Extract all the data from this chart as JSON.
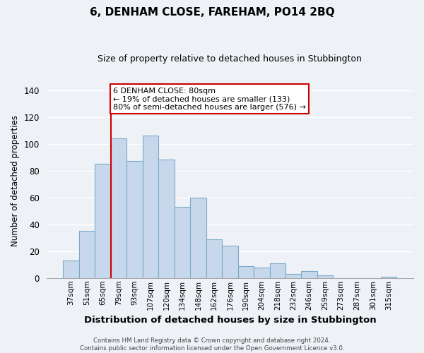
{
  "title": "6, DENHAM CLOSE, FAREHAM, PO14 2BQ",
  "subtitle": "Size of property relative to detached houses in Stubbington",
  "xlabel": "Distribution of detached houses by size in Stubbington",
  "ylabel": "Number of detached properties",
  "bar_labels": [
    "37sqm",
    "51sqm",
    "65sqm",
    "79sqm",
    "93sqm",
    "107sqm",
    "120sqm",
    "134sqm",
    "148sqm",
    "162sqm",
    "176sqm",
    "190sqm",
    "204sqm",
    "218sqm",
    "232sqm",
    "246sqm",
    "259sqm",
    "273sqm",
    "287sqm",
    "301sqm",
    "315sqm"
  ],
  "bar_values": [
    13,
    35,
    85,
    104,
    87,
    106,
    88,
    53,
    60,
    29,
    24,
    9,
    8,
    11,
    3,
    5,
    2,
    0,
    0,
    0,
    1
  ],
  "bar_color": "#c8d8ec",
  "bar_edge_color": "#7aaac8",
  "vline_x_index": 3,
  "vline_color": "#cc0000",
  "annotation_title": "6 DENHAM CLOSE: 80sqm",
  "annotation_line1": "← 19% of detached houses are smaller (133)",
  "annotation_line2": "80% of semi-detached houses are larger (576) →",
  "annotation_box_color": "#ffffff",
  "annotation_box_edge": "#cc0000",
  "yticks": [
    0,
    20,
    40,
    60,
    80,
    100,
    120,
    140
  ],
  "ylim": [
    0,
    145
  ],
  "footer_line1": "Contains HM Land Registry data © Crown copyright and database right 2024.",
  "footer_line2": "Contains public sector information licensed under the Open Government Licence v3.0.",
  "background_color": "#eef2f7",
  "grid_color": "#ffffff",
  "title_fontsize": 11,
  "subtitle_fontsize": 9
}
